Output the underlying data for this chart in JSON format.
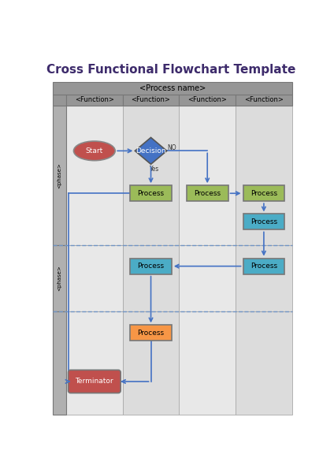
{
  "title": "Cross Functional Flowchart Template",
  "title_color": "#3d2b6b",
  "title_fontsize": 11,
  "process_name": "<Process name>",
  "functions": [
    "<Function>",
    "<Function>",
    "<Function>",
    "<Function>"
  ],
  "phase_labels": [
    "<phase>",
    "<phase>"
  ],
  "header_bg": "#969696",
  "func_bg": "#969696",
  "label_col_bg": "#b0b0b0",
  "col_colors": [
    "#e8e8e8",
    "#dcdcdc",
    "#e8e8e8",
    "#dcdcdc"
  ],
  "dashed_line_color": "#7094c4",
  "arrow_color": "#4472c4",
  "grid_line_color": "#aaaaaa",
  "start_color": "#c0504d",
  "decision_color": "#4472c4",
  "proc_green": "#9bbb59",
  "proc_teal": "#4bacc6",
  "proc_orange": "#f79646",
  "term_color": "#c0504d"
}
